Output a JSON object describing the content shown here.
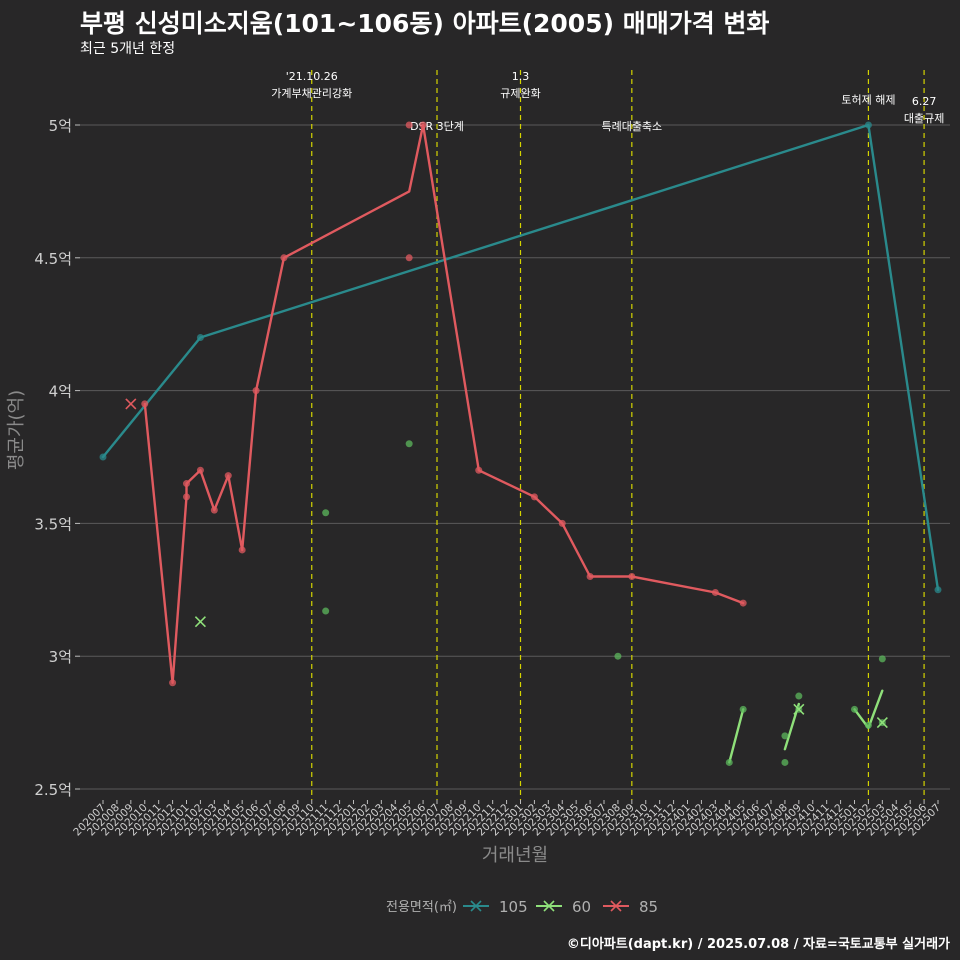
{
  "header": {
    "title": "부평 신성미소지움(101~106동) 아파트(2005) 매매가격 변화",
    "subtitle": "최근 5개년 한정"
  },
  "caption": "©디아파트(dapt.kr) / 2025.07.08 / 자료=국토교통부 실거래가",
  "colors": {
    "background": "#282728",
    "grid": "#5a5a5a",
    "event_line": "#d4d400",
    "s105": "#2a8a8c",
    "s60": "#8fe07a",
    "s60_point": "#5cb85c",
    "s85": "#e05a5f"
  },
  "chart_data": {
    "type": "line",
    "title": "부평 신성미소지움(101~106동) 아파트(2005) 매매가격 변화",
    "xlabel": "거래년월",
    "ylabel": "평균가(억)",
    "ylim": [
      2.5,
      5.2
    ],
    "yticks": [
      2.5,
      3,
      3.5,
      4,
      4.5,
      5
    ],
    "ytick_labels": [
      "2.5억",
      "3억",
      "3.5억",
      "4억",
      "4.5억",
      "5억"
    ],
    "months": [
      "202007",
      "202008",
      "202009",
      "202010",
      "202011",
      "202012",
      "202101",
      "202102",
      "202103",
      "202104",
      "202105",
      "202106",
      "202107",
      "202108",
      "202109",
      "202110",
      "202111",
      "202112",
      "202201",
      "202202",
      "202203",
      "202204",
      "202205",
      "202206",
      "202207",
      "202208",
      "202209",
      "202210",
      "202211",
      "202212",
      "202301",
      "202302",
      "202303",
      "202304",
      "202305",
      "202306",
      "202307",
      "202308",
      "202309",
      "202310",
      "202311",
      "202312",
      "202401",
      "202402",
      "202403",
      "202404",
      "202405",
      "202406",
      "202407",
      "202408",
      "202409",
      "202410",
      "202411",
      "202412",
      "202501",
      "202502",
      "202503",
      "202504",
      "202505",
      "202506",
      "202507"
    ],
    "legend": {
      "title": "전용면적(㎡)",
      "position": "bottom",
      "items": [
        {
          "name": "105",
          "color": "#2a8a8c"
        },
        {
          "name": "60",
          "color": "#8fe07a"
        },
        {
          "name": "85",
          "color": "#e05a5f"
        }
      ]
    },
    "series": [
      {
        "name": "105",
        "color": "#2a8a8c",
        "line": [
          [
            "202007",
            3.75
          ],
          [
            "202102",
            4.2
          ],
          [
            "202502",
            5.0
          ],
          [
            "202507",
            3.25
          ]
        ],
        "points": [
          [
            "202007",
            3.75
          ],
          [
            "202102",
            4.2
          ],
          [
            "202502",
            5.0
          ],
          [
            "202507",
            3.25
          ]
        ],
        "crosses": []
      },
      {
        "name": "60",
        "color": "#8fe07a",
        "line_segments": [
          [
            [
              "202404",
              2.6
            ],
            [
              "202405",
              2.8
            ]
          ],
          [
            [
              "202408",
              2.65
            ],
            [
              "202409",
              2.82
            ]
          ],
          [
            [
              "202501",
              2.8
            ],
            [
              "202502",
              2.73
            ],
            [
              "202503",
              2.87
            ]
          ]
        ],
        "points": [
          [
            "202111",
            3.54
          ],
          [
            "202111",
            3.17
          ],
          [
            "202205",
            3.8
          ],
          [
            "202308",
            3.0
          ],
          [
            "202404",
            2.6
          ],
          [
            "202405",
            2.8
          ],
          [
            "202408",
            2.6
          ],
          [
            "202408",
            2.7
          ],
          [
            "202409",
            2.85
          ],
          [
            "202409",
            2.8
          ],
          [
            "202501",
            2.8
          ],
          [
            "202502",
            2.74
          ],
          [
            "202503",
            2.99
          ],
          [
            "202503",
            2.75
          ]
        ],
        "crosses": [
          [
            "202102",
            3.13
          ],
          [
            "202409",
            2.8
          ],
          [
            "202503",
            2.75
          ]
        ]
      },
      {
        "name": "85",
        "color": "#e05a5f",
        "line": [
          [
            "202010",
            3.95
          ],
          [
            "202012",
            2.9
          ],
          [
            "202101",
            3.6
          ],
          [
            "202101",
            3.65
          ],
          [
            "202102",
            3.7
          ],
          [
            "202103",
            3.55
          ],
          [
            "202104",
            3.68
          ],
          [
            "202105",
            3.4
          ],
          [
            "202106",
            4.0
          ],
          [
            "202108",
            4.5
          ],
          [
            "202205",
            4.75
          ],
          [
            "202206",
            5.0
          ],
          [
            "202210",
            3.7
          ],
          [
            "202302",
            3.6
          ],
          [
            "202304",
            3.5
          ],
          [
            "202306",
            3.3
          ],
          [
            "202309",
            3.3
          ],
          [
            "202403",
            3.24
          ],
          [
            "202405",
            3.2
          ]
        ],
        "points": [
          [
            "202010",
            3.95
          ],
          [
            "202012",
            2.9
          ],
          [
            "202101",
            3.6
          ],
          [
            "202101",
            3.65
          ],
          [
            "202102",
            3.7
          ],
          [
            "202103",
            3.55
          ],
          [
            "202104",
            3.68
          ],
          [
            "202105",
            3.4
          ],
          [
            "202106",
            4.0
          ],
          [
            "202108",
            4.5
          ],
          [
            "202205",
            5.0
          ],
          [
            "202205",
            4.5
          ],
          [
            "202206",
            5.0
          ],
          [
            "202210",
            3.7
          ],
          [
            "202302",
            3.6
          ],
          [
            "202304",
            3.5
          ],
          [
            "202306",
            3.3
          ],
          [
            "202309",
            3.3
          ],
          [
            "202403",
            3.24
          ],
          [
            "202405",
            3.2
          ]
        ],
        "crosses": [
          [
            "202009",
            3.95
          ]
        ]
      }
    ],
    "events": [
      {
        "month": "202110",
        "lines": [
          "'21.10.26",
          "가계부채관리강화"
        ],
        "label_y": 5.125
      },
      {
        "month": "202207",
        "lines": [
          "DSR 3단계"
        ],
        "label_y": 5.0
      },
      {
        "month": "202301",
        "lines": [
          "1.3",
          "규제완화"
        ],
        "label_y": 5.125
      },
      {
        "month": "202309",
        "lines": [
          "특례대출축소"
        ],
        "label_y": 5.0
      },
      {
        "month": "202502",
        "lines": [
          "토허제 해제"
        ],
        "label_y": 5.1
      },
      {
        "month": "202506",
        "lines": [
          "6.27",
          "대출규제"
        ],
        "label_y": 5.03
      }
    ]
  }
}
